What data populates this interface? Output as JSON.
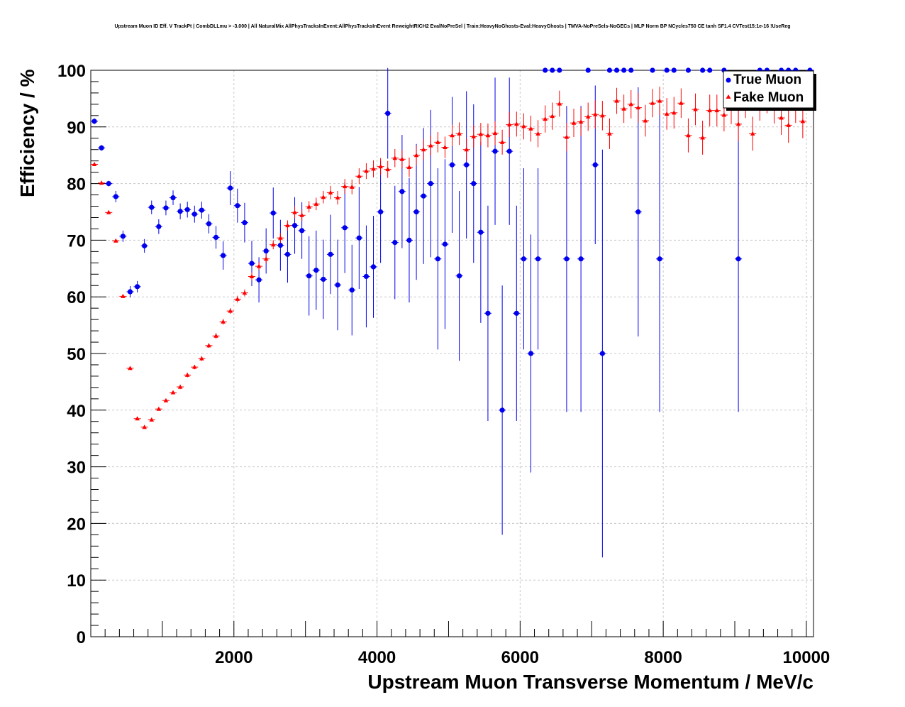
{
  "chart_data": {
    "type": "scatter",
    "title": "Upstream Muon ID Eff. V TrackPt | CombDLLmu > -3.000 | All NaturalMix AllPhysTracksInEvent:AllPhysTracksInEvent ReweightRICH2 EvalNoPreSel | Train:HeavyNoGhosts-Eval:HeavyGhosts | TMVA-NoPreSels-NoGECs | MLP Norm BP NCycles750 CE tanh SF1.4 CVTest15:1e-16 !UseReg",
    "xlabel": "Upstream Muon Transverse Momentum / MeV/c",
    "ylabel": "Efficiency / %",
    "xlim": [
      0,
      10100
    ],
    "ylim": [
      0,
      100
    ],
    "x_ticks": [
      2000,
      4000,
      6000,
      8000,
      10000
    ],
    "y_ticks": [
      0,
      10,
      20,
      30,
      40,
      50,
      60,
      70,
      80,
      90,
      100
    ],
    "grid": true,
    "legend_position": "top-right",
    "series": [
      {
        "name": "True Muon",
        "color": "#0000ee",
        "marker": "circle",
        "points": [
          [
            50,
            91,
            0.5
          ],
          [
            150,
            86.3,
            0.5
          ],
          [
            250,
            80,
            0.5
          ],
          [
            350,
            77.7,
            1
          ],
          [
            450,
            70.7,
            1
          ],
          [
            550,
            60.9,
            1
          ],
          [
            650,
            61.8,
            1
          ],
          [
            750,
            69,
            1.2
          ],
          [
            850,
            75.8,
            1.2
          ],
          [
            950,
            72.4,
            1.3
          ],
          [
            1050,
            75.7,
            1.3
          ],
          [
            1150,
            77.5,
            1.3
          ],
          [
            1250,
            75.1,
            1.4
          ],
          [
            1350,
            75.4,
            1.4
          ],
          [
            1450,
            74.6,
            1.5
          ],
          [
            1550,
            75.3,
            1.5
          ],
          [
            1650,
            72.9,
            1.7
          ],
          [
            1750,
            70.5,
            2
          ],
          [
            1850,
            67.3,
            2.5
          ],
          [
            1950,
            79.2,
            3
          ],
          [
            2050,
            76.1,
            3
          ],
          [
            2150,
            73.1,
            3.5
          ],
          [
            2250,
            65.9,
            4
          ],
          [
            2350,
            63,
            4
          ],
          [
            2450,
            68.1,
            4
          ],
          [
            2550,
            74.8,
            4.5
          ],
          [
            2650,
            69.1,
            4.5
          ],
          [
            2750,
            67.5,
            5
          ],
          [
            2850,
            72.6,
            5
          ],
          [
            2950,
            71.7,
            5
          ],
          [
            3050,
            63.7,
            7
          ],
          [
            3150,
            64.7,
            7
          ],
          [
            3250,
            63.1,
            7
          ],
          [
            3350,
            67.5,
            7
          ],
          [
            3450,
            62.1,
            8
          ],
          [
            3550,
            72.2,
            8
          ],
          [
            3650,
            61.2,
            8
          ],
          [
            3750,
            70.4,
            9
          ],
          [
            3850,
            63.6,
            9
          ],
          [
            3950,
            65.3,
            9
          ],
          [
            4050,
            75,
            9
          ],
          [
            4150,
            92.4,
            8
          ],
          [
            4250,
            69.6,
            10
          ],
          [
            4350,
            78.6,
            10
          ],
          [
            4450,
            70,
            11
          ],
          [
            4550,
            75,
            12
          ],
          [
            4650,
            77.8,
            12
          ],
          [
            4750,
            80,
            13
          ],
          [
            4850,
            66.7,
            16
          ],
          [
            4950,
            69.3,
            15
          ],
          [
            5050,
            83.3,
            12
          ],
          [
            5150,
            63.7,
            15
          ],
          [
            5250,
            83.3,
            13
          ],
          [
            5350,
            80,
            14
          ],
          [
            5450,
            71.4,
            16
          ],
          [
            5550,
            57.1,
            19
          ],
          [
            5650,
            85.7,
            13
          ],
          [
            5750,
            40,
            22
          ],
          [
            5850,
            85.7,
            13
          ],
          [
            5950,
            57.1,
            19
          ],
          [
            6050,
            66.7,
            16
          ],
          [
            6150,
            50,
            21
          ],
          [
            6250,
            66.7,
            16
          ],
          [
            6350,
            100,
            0
          ],
          [
            6450,
            100,
            0
          ],
          [
            6550,
            100,
            0
          ],
          [
            6650,
            66.7,
            27
          ],
          [
            6850,
            66.7,
            27
          ],
          [
            6950,
            100,
            0
          ],
          [
            7050,
            83.3,
            14
          ],
          [
            7150,
            50,
            36
          ],
          [
            7250,
            100,
            0
          ],
          [
            7350,
            100,
            0
          ],
          [
            7450,
            100,
            0
          ],
          [
            7550,
            100,
            0
          ],
          [
            7650,
            75,
            22
          ],
          [
            7850,
            100,
            0
          ],
          [
            7950,
            66.7,
            27
          ],
          [
            8050,
            100,
            0
          ],
          [
            8150,
            100,
            0
          ],
          [
            8350,
            100,
            0
          ],
          [
            8550,
            100,
            0
          ],
          [
            8650,
            100,
            0
          ],
          [
            8850,
            100,
            0
          ],
          [
            9050,
            66.7,
            27
          ],
          [
            9350,
            100,
            0
          ],
          [
            9450,
            100,
            0
          ],
          [
            9650,
            100,
            0
          ],
          [
            9750,
            100,
            0
          ],
          [
            9850,
            100,
            0
          ],
          [
            10050,
            100,
            0
          ]
        ]
      },
      {
        "name": "Fake Muon",
        "color": "#ff0000",
        "marker": "triangle",
        "points": [
          [
            50,
            83.4,
            0.3
          ],
          [
            150,
            80.1,
            0.3
          ],
          [
            250,
            74.9,
            0.3
          ],
          [
            350,
            69.9,
            0.3
          ],
          [
            450,
            60.1,
            0.3
          ],
          [
            550,
            47.4,
            0.3
          ],
          [
            650,
            38.5,
            0.3
          ],
          [
            750,
            37,
            0.3
          ],
          [
            850,
            38.3,
            0.3
          ],
          [
            950,
            40.2,
            0.3
          ],
          [
            1050,
            41.7,
            0.3
          ],
          [
            1150,
            43.1,
            0.3
          ],
          [
            1250,
            44.1,
            0.4
          ],
          [
            1350,
            46.2,
            0.4
          ],
          [
            1450,
            47.6,
            0.4
          ],
          [
            1550,
            49.1,
            0.4
          ],
          [
            1650,
            51.4,
            0.4
          ],
          [
            1750,
            53.1,
            0.5
          ],
          [
            1850,
            55.6,
            0.5
          ],
          [
            1950,
            57.5,
            0.5
          ],
          [
            2050,
            59.6,
            0.6
          ],
          [
            2150,
            60.7,
            0.6
          ],
          [
            2250,
            63.6,
            0.7
          ],
          [
            2350,
            65.4,
            0.7
          ],
          [
            2450,
            66.7,
            0.8
          ],
          [
            2550,
            69.2,
            0.8
          ],
          [
            2650,
            70.4,
            0.9
          ],
          [
            2750,
            72.6,
            0.9
          ],
          [
            2850,
            74.9,
            1
          ],
          [
            2950,
            74.4,
            1
          ],
          [
            3050,
            75.9,
            1
          ],
          [
            3150,
            76.4,
            1.1
          ],
          [
            3250,
            77.6,
            1.1
          ],
          [
            3350,
            78.4,
            1.2
          ],
          [
            3450,
            77.5,
            1.2
          ],
          [
            3550,
            79.5,
            1.3
          ],
          [
            3650,
            79.4,
            1.3
          ],
          [
            3750,
            81.3,
            1.4
          ],
          [
            3850,
            82.2,
            1.4
          ],
          [
            3950,
            82.6,
            1.5
          ],
          [
            4050,
            83,
            1.5
          ],
          [
            4150,
            82.5,
            1.5
          ],
          [
            4250,
            84.5,
            1.6
          ],
          [
            4350,
            84.3,
            1.6
          ],
          [
            4450,
            82.9,
            1.7
          ],
          [
            4550,
            85,
            1.7
          ],
          [
            4650,
            86,
            1.8
          ],
          [
            4750,
            86.7,
            1.8
          ],
          [
            4850,
            87.3,
            1.8
          ],
          [
            4950,
            86.4,
            1.9
          ],
          [
            5050,
            88.5,
            1.9
          ],
          [
            5150,
            88.8,
            2
          ],
          [
            5250,
            86,
            2
          ],
          [
            5350,
            88.3,
            2
          ],
          [
            5450,
            88.7,
            2
          ],
          [
            5550,
            88.5,
            2.1
          ],
          [
            5650,
            88.9,
            2.1
          ],
          [
            5750,
            87.3,
            2.2
          ],
          [
            5850,
            90.4,
            2.2
          ],
          [
            5950,
            90.5,
            2.2
          ],
          [
            6050,
            90.1,
            2.3
          ],
          [
            6150,
            89.7,
            2.3
          ],
          [
            6250,
            88.8,
            2.4
          ],
          [
            6350,
            91.4,
            2.4
          ],
          [
            6450,
            91.9,
            2.4
          ],
          [
            6550,
            94.1,
            2.3
          ],
          [
            6650,
            88.2,
            2.5
          ],
          [
            6750,
            90.7,
            2.5
          ],
          [
            6850,
            90.9,
            2.5
          ],
          [
            6950,
            91.8,
            2.5
          ],
          [
            7050,
            92.2,
            2.5
          ],
          [
            7150,
            92,
            2.6
          ],
          [
            7250,
            88.8,
            2.7
          ],
          [
            7350,
            94.6,
            2.3
          ],
          [
            7450,
            93.2,
            2.5
          ],
          [
            7550,
            94,
            2.5
          ],
          [
            7650,
            93.4,
            2.6
          ],
          [
            7750,
            91.1,
            2.8
          ],
          [
            7850,
            94.2,
            2.5
          ],
          [
            7950,
            94.6,
            2.5
          ],
          [
            8050,
            92.3,
            2.8
          ],
          [
            8150,
            92.5,
            2.8
          ],
          [
            8250,
            94.2,
            2.6
          ],
          [
            8350,
            88.5,
            3
          ],
          [
            8450,
            93.1,
            2.8
          ],
          [
            8550,
            88.1,
            3
          ],
          [
            8650,
            92.9,
            2.8
          ],
          [
            8750,
            92.9,
            2.8
          ],
          [
            8850,
            92.1,
            2.9
          ],
          [
            8950,
            93.3,
            2.8
          ],
          [
            9050,
            90.5,
            3
          ],
          [
            9150,
            94.2,
            2.6
          ],
          [
            9250,
            88.8,
            3
          ],
          [
            9350,
            93.8,
            2.7
          ],
          [
            9450,
            94.9,
            2.5
          ],
          [
            9550,
            93.4,
            2.8
          ],
          [
            9650,
            91.6,
            3
          ],
          [
            9750,
            90.3,
            3.1
          ],
          [
            9850,
            93.5,
            2.8
          ],
          [
            9950,
            91,
            3
          ]
        ]
      }
    ]
  }
}
